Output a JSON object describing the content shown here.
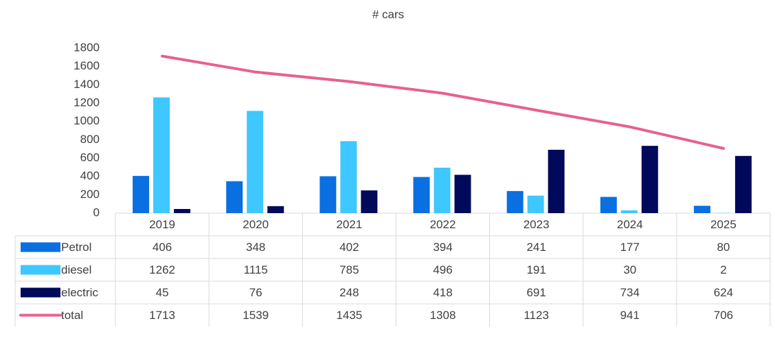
{
  "chart_data": {
    "type": "bar",
    "title": "# cars",
    "categories": [
      "2019",
      "2020",
      "2021",
      "2022",
      "2023",
      "2024",
      "2025"
    ],
    "series": [
      {
        "name": "Petrol",
        "type": "bar",
        "color": "#0a6fe0",
        "values": [
          406,
          348,
          402,
          394,
          241,
          177,
          80
        ]
      },
      {
        "name": "diesel",
        "type": "bar",
        "color": "#3fc7ff",
        "values": [
          1262,
          1115,
          785,
          496,
          191,
          30,
          2
        ]
      },
      {
        "name": "electric",
        "type": "bar",
        "color": "#00095a",
        "values": [
          45,
          76,
          248,
          418,
          691,
          734,
          624
        ]
      },
      {
        "name": "total",
        "type": "line",
        "color": "#e8618c",
        "values": [
          1713,
          1539,
          1435,
          1308,
          1123,
          941,
          706
        ]
      }
    ],
    "ylim": [
      0,
      1800
    ],
    "yticks": [
      0,
      200,
      400,
      600,
      800,
      1000,
      1200,
      1400,
      1600,
      1800
    ],
    "grid": false
  }
}
